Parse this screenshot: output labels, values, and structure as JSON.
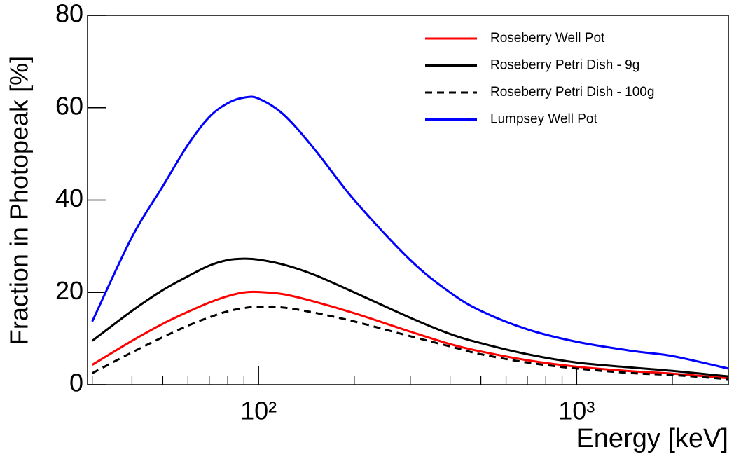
{
  "chart_data": {
    "type": "line",
    "x_label": "Energy [keV]",
    "y_label": "Fraction in Photopeak [%]",
    "x_log": true,
    "x": [
      30,
      40,
      50,
      60,
      70,
      80,
      90,
      100,
      120,
      150,
      200,
      300,
      400,
      500,
      700,
      1000,
      1500,
      2000,
      3000
    ],
    "series": [
      {
        "name": "Roseberry Well Pot",
        "color": "#ff0000",
        "dashed": false,
        "values": [
          4.3,
          9.5,
          13.2,
          15.8,
          17.8,
          19.2,
          20,
          20.1,
          19.6,
          18,
          15.5,
          11.5,
          8.8,
          7.2,
          5.3,
          3.9,
          2.9,
          2.4,
          1.4
        ]
      },
      {
        "name": "Roseberry Petri Dish - 9g",
        "color": "#000000",
        "dashed": false,
        "values": [
          9.5,
          16,
          20.5,
          23.5,
          25.8,
          27,
          27.3,
          27.1,
          26,
          23.8,
          20,
          14.5,
          11,
          9,
          6.6,
          4.8,
          3.7,
          3,
          1.8
        ]
      },
      {
        "name": "Roseberry Petri Dish - 100g",
        "color": "#000000",
        "dashed": true,
        "values": [
          2.5,
          7,
          10.3,
          12.8,
          14.6,
          15.9,
          16.6,
          16.9,
          16.7,
          15.6,
          13.7,
          10.5,
          8.3,
          6.6,
          4.8,
          3.5,
          2.5,
          2.1,
          1.2
        ]
      },
      {
        "name": "Lumpsey Well Pot",
        "color": "#0000ff",
        "dashed": false,
        "values": [
          13.7,
          32,
          43,
          52,
          58,
          61,
          62.2,
          62,
          58.5,
          51,
          40,
          27,
          20,
          16,
          12,
          9.3,
          7.3,
          6.2,
          3.5
        ]
      }
    ],
    "xlim": [
      29,
      3000
    ],
    "xticks": [
      {
        "value": 100,
        "label": "10²"
      },
      {
        "value": 1000,
        "label": "10³"
      }
    ],
    "xminorticks": [
      30,
      40,
      50,
      60,
      70,
      80,
      90,
      200,
      300,
      400,
      500,
      600,
      700,
      800,
      900,
      2000,
      3000
    ],
    "ylim": [
      0,
      80
    ],
    "yticks": [
      0,
      20,
      40,
      60,
      80
    ],
    "legend": "top-right",
    "grid": false
  }
}
